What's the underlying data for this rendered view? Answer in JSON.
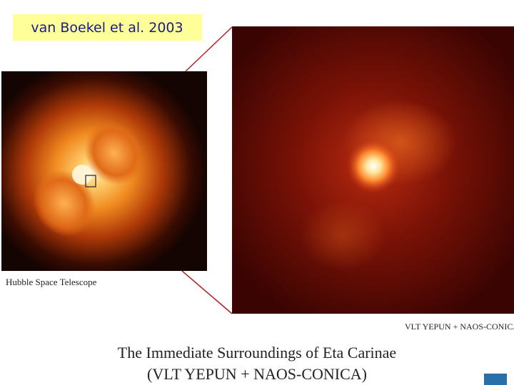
{
  "label": "van Boekel et al. 2003",
  "left_image": {
    "caption": "Hubble Space Telescope"
  },
  "right_image": {
    "caption": "VLT YEPUN + NAOS-CONICA"
  },
  "title": {
    "line1": "The Immediate Surroundings of Eta Carinae",
    "line2": "(VLT YEPUN + NAOS-CONICA)"
  }
}
